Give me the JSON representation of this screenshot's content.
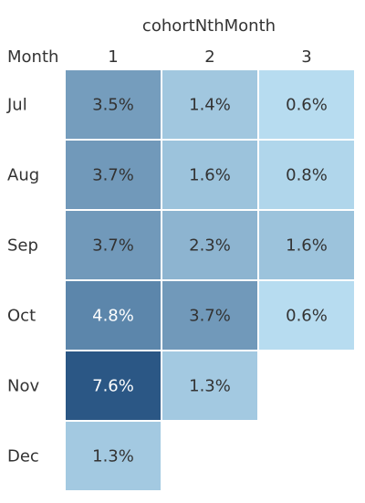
{
  "chart_data": {
    "type": "heatmap",
    "title": "cohortNthMonth",
    "row_header": "Month",
    "columns": [
      "1",
      "2",
      "3"
    ],
    "rows": [
      "Jul",
      "Aug",
      "Sep",
      "Oct",
      "Nov",
      "Dec"
    ],
    "values": [
      [
        3.5,
        1.4,
        0.6
      ],
      [
        3.7,
        1.6,
        0.8
      ],
      [
        3.7,
        2.3,
        1.6
      ],
      [
        4.8,
        3.7,
        0.6
      ],
      [
        7.6,
        1.3,
        null
      ],
      [
        1.3,
        null,
        null
      ]
    ],
    "labels": [
      [
        "3.5%",
        "1.4%",
        "0.6%"
      ],
      [
        "3.7%",
        "1.6%",
        "0.8%"
      ],
      [
        "3.7%",
        "2.3%",
        "1.6%"
      ],
      [
        "4.8%",
        "3.7%",
        "0.6%"
      ],
      [
        "7.6%",
        "1.3%",
        ""
      ],
      [
        "1.3%",
        "",
        ""
      ]
    ],
    "color_scale": {
      "low": "#b7dcf0",
      "high": "#2b5785",
      "min_value": 0.6,
      "max_value": 7.6
    },
    "text_colors": {
      "dark": "#333333",
      "light": "#ffffff"
    }
  }
}
